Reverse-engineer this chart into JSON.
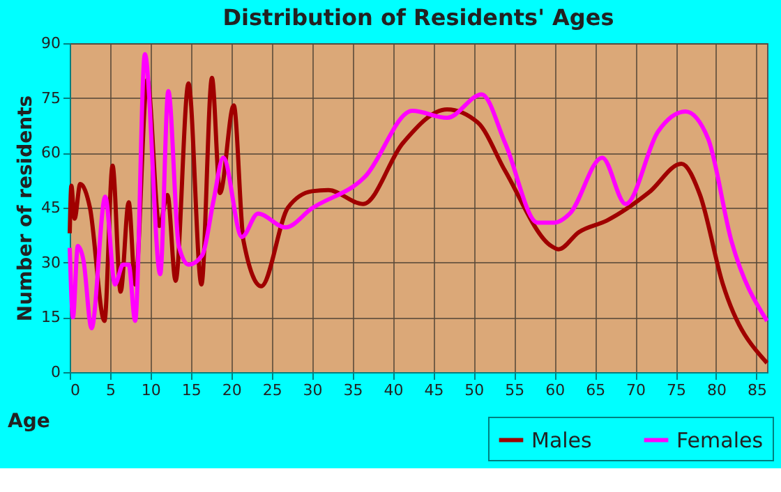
{
  "chart_data": {
    "type": "line",
    "title": "Distribution of Residents' Ages",
    "xlabel": "Age",
    "ylabel": "Number of residents",
    "xlim": [
      0,
      86.3
    ],
    "xticks": [
      0,
      5,
      10,
      15,
      20,
      25,
      30,
      35,
      40,
      45,
      50,
      55,
      60,
      65,
      70,
      75,
      80,
      85
    ],
    "ylim": [
      0,
      90
    ],
    "yticks": [
      0,
      15,
      30,
      45,
      60,
      75,
      90
    ],
    "grid": true,
    "legend": "bottom right",
    "line_style": "solid",
    "marker": "none",
    "series": [
      {
        "name": "Males",
        "color": "#a00000",
        "x": [
          0,
          0.2,
          0.6,
          1.3,
          2.5,
          4.3,
          5.3,
          6.3,
          7.3,
          8.1,
          9.6,
          11.1,
          12.1,
          13.1,
          14.7,
          16.3,
          17.6,
          18.6,
          20.3,
          21.5,
          23.7,
          27,
          30,
          32,
          36.3,
          41.2,
          46.7,
          50.5,
          53.9,
          59.6,
          60.5,
          63,
          66.5,
          71.7,
          75.7,
          78,
          80.8,
          86.3
        ],
        "values": [
          38,
          51,
          42,
          51.5,
          45,
          14,
          56.5,
          22,
          46.5,
          24,
          80,
          40,
          48.5,
          25,
          79,
          24,
          80.5,
          49,
          73,
          36,
          23.5,
          45,
          49.5,
          49.8,
          46,
          62.6,
          71.9,
          68.3,
          55,
          34.5,
          33.6,
          38.3,
          41.5,
          49.2,
          57,
          48.5,
          24.3,
          2.5
        ]
      },
      {
        "name": "Females",
        "color": "#ff00ff",
        "x": [
          0,
          0.4,
          1,
          1.7,
          2.7,
          4.4,
          5.6,
          6.6,
          7.3,
          8.1,
          9.3,
          11.2,
          12.2,
          13.5,
          14.7,
          16.4,
          17.8,
          19,
          21.3,
          23.3,
          26.7,
          29.9,
          36.6,
          42.4,
          46.7,
          51,
          53.9,
          57.9,
          60,
          61.9,
          65.9,
          68.8,
          72.8,
          76.2,
          79,
          81.9,
          86.3
        ],
        "values": [
          34,
          15,
          34.5,
          30.6,
          12,
          48,
          24,
          29.4,
          29.4,
          14,
          87,
          26.8,
          76.9,
          34.5,
          29.4,
          32,
          47,
          58.7,
          37,
          43.4,
          39.6,
          44.7,
          53.6,
          71.5,
          69.6,
          76,
          62.6,
          40.9,
          40.9,
          43.4,
          58.7,
          46,
          65.8,
          71.3,
          63.9,
          35.8,
          14
        ]
      }
    ]
  }
}
